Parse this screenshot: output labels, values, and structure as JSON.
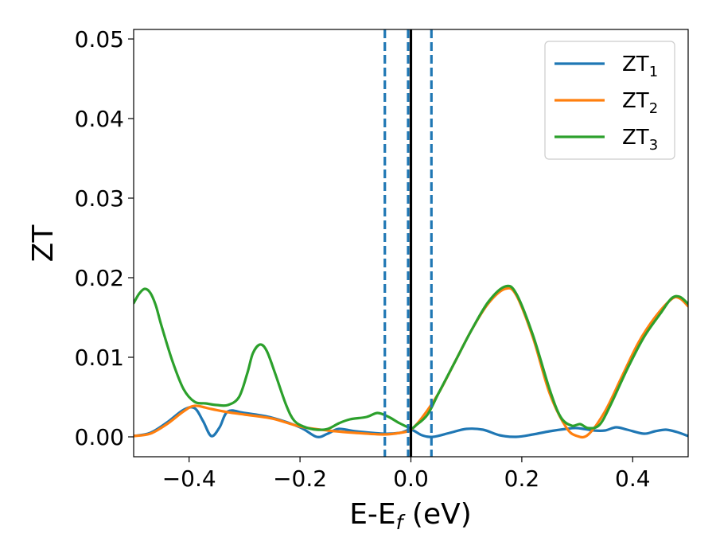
{
  "chart_data": {
    "type": "line",
    "title": "",
    "xlabel": {
      "main": "E-E",
      "subscript": "f",
      "suffix": " (eV)"
    },
    "ylabel": "ZT",
    "xlim": [
      -0.5,
      0.5
    ],
    "ylim": [
      -0.0025,
      0.0512
    ],
    "xticks": [
      -0.4,
      -0.2,
      0.0,
      0.2,
      0.4
    ],
    "xtick_labels": [
      "−0.4",
      "−0.2",
      "0.0",
      "0.2",
      "0.4"
    ],
    "yticks": [
      0.0,
      0.01,
      0.02,
      0.03,
      0.04,
      0.05
    ],
    "ytick_labels": [
      "0.00",
      "0.01",
      "0.02",
      "0.03",
      "0.04",
      "0.05"
    ],
    "grid": false,
    "legend_position": "top-right",
    "vertical_lines": [
      {
        "x": 0.0,
        "style": "solid",
        "color": "#000000"
      },
      {
        "x": -0.047,
        "style": "dashed",
        "color": "#1f77b4"
      },
      {
        "x": -0.005,
        "style": "dashed",
        "color": "#1f77b4"
      },
      {
        "x": 0.037,
        "style": "dashed",
        "color": "#1f77b4"
      }
    ],
    "series": [
      {
        "name": "ZT",
        "subscript": "1",
        "color": "#1f77b4",
        "points": [
          [
            -0.5,
            0.0001
          ],
          [
            -0.47,
            0.0005
          ],
          [
            -0.44,
            0.0018
          ],
          [
            -0.41,
            0.0034
          ],
          [
            -0.39,
            0.0036
          ],
          [
            -0.375,
            0.002
          ],
          [
            -0.36,
            0.0001
          ],
          [
            -0.345,
            0.0012
          ],
          [
            -0.33,
            0.0032
          ],
          [
            -0.3,
            0.003
          ],
          [
            -0.25,
            0.0024
          ],
          [
            -0.2,
            0.0012
          ],
          [
            -0.17,
            0.0
          ],
          [
            -0.15,
            0.0004
          ],
          [
            -0.13,
            0.001
          ],
          [
            -0.1,
            0.0007
          ],
          [
            -0.05,
            0.0004
          ],
          [
            -0.02,
            0.0005
          ],
          [
            0.0,
            0.0009
          ],
          [
            0.02,
            0.0002
          ],
          [
            0.04,
            0.0
          ],
          [
            0.07,
            0.0005
          ],
          [
            0.1,
            0.001
          ],
          [
            0.13,
            0.0009
          ],
          [
            0.16,
            0.0002
          ],
          [
            0.19,
            0.0
          ],
          [
            0.22,
            0.0003
          ],
          [
            0.25,
            0.0007
          ],
          [
            0.28,
            0.001
          ],
          [
            0.3,
            0.0011
          ],
          [
            0.33,
            0.0008
          ],
          [
            0.35,
            0.0008
          ],
          [
            0.37,
            0.0012
          ],
          [
            0.39,
            0.0009
          ],
          [
            0.42,
            0.0004
          ],
          [
            0.44,
            0.0007
          ],
          [
            0.46,
            0.0009
          ],
          [
            0.48,
            0.0006
          ],
          [
            0.5,
            0.0001
          ]
        ]
      },
      {
        "name": "ZT",
        "subscript": "2",
        "color": "#ff7f0e",
        "points": [
          [
            -0.5,
            0.0001
          ],
          [
            -0.47,
            0.0004
          ],
          [
            -0.44,
            0.0016
          ],
          [
            -0.41,
            0.0032
          ],
          [
            -0.39,
            0.0039
          ],
          [
            -0.36,
            0.0035
          ],
          [
            -0.33,
            0.0031
          ],
          [
            -0.3,
            0.0028
          ],
          [
            -0.25,
            0.0023
          ],
          [
            -0.2,
            0.0013
          ],
          [
            -0.15,
            0.0008
          ],
          [
            -0.1,
            0.0005
          ],
          [
            -0.05,
            0.0003
          ],
          [
            -0.02,
            0.0005
          ],
          [
            0.0,
            0.0009
          ],
          [
            0.02,
            0.0024
          ],
          [
            0.05,
            0.0055
          ],
          [
            0.08,
            0.0095
          ],
          [
            0.11,
            0.0135
          ],
          [
            0.14,
            0.0168
          ],
          [
            0.17,
            0.0186
          ],
          [
            0.19,
            0.0178
          ],
          [
            0.22,
            0.0125
          ],
          [
            0.25,
            0.0055
          ],
          [
            0.28,
            0.0012
          ],
          [
            0.3,
            0.0001
          ],
          [
            0.32,
            0.0003
          ],
          [
            0.35,
            0.0032
          ],
          [
            0.38,
            0.0075
          ],
          [
            0.41,
            0.0118
          ],
          [
            0.44,
            0.015
          ],
          [
            0.47,
            0.0173
          ],
          [
            0.485,
            0.0174
          ],
          [
            0.5,
            0.0164
          ]
        ]
      },
      {
        "name": "ZT",
        "subscript": "3",
        "color": "#2ca02c",
        "points": [
          [
            -0.5,
            0.0168
          ],
          [
            -0.49,
            0.018
          ],
          [
            -0.48,
            0.0186
          ],
          [
            -0.47,
            0.0181
          ],
          [
            -0.46,
            0.0165
          ],
          [
            -0.45,
            0.014
          ],
          [
            -0.43,
            0.0095
          ],
          [
            -0.41,
            0.006
          ],
          [
            -0.39,
            0.0044
          ],
          [
            -0.37,
            0.0042
          ],
          [
            -0.35,
            0.004
          ],
          [
            -0.33,
            0.004
          ],
          [
            -0.31,
            0.005
          ],
          [
            -0.295,
            0.008
          ],
          [
            -0.285,
            0.0105
          ],
          [
            -0.272,
            0.0116
          ],
          [
            -0.26,
            0.0108
          ],
          [
            -0.245,
            0.008
          ],
          [
            -0.225,
            0.004
          ],
          [
            -0.21,
            0.002
          ],
          [
            -0.19,
            0.0012
          ],
          [
            -0.17,
            0.0009
          ],
          [
            -0.15,
            0.001
          ],
          [
            -0.13,
            0.0017
          ],
          [
            -0.11,
            0.0022
          ],
          [
            -0.08,
            0.0025
          ],
          [
            -0.06,
            0.003
          ],
          [
            -0.04,
            0.0025
          ],
          [
            -0.02,
            0.0017
          ],
          [
            0.0,
            0.0011
          ],
          [
            0.01,
            0.0015
          ],
          [
            0.03,
            0.0028
          ],
          [
            0.05,
            0.0055
          ],
          [
            0.08,
            0.0095
          ],
          [
            0.11,
            0.0135
          ],
          [
            0.14,
            0.017
          ],
          [
            0.17,
            0.0189
          ],
          [
            0.19,
            0.018
          ],
          [
            0.22,
            0.0128
          ],
          [
            0.25,
            0.006
          ],
          [
            0.27,
            0.0025
          ],
          [
            0.29,
            0.0014
          ],
          [
            0.305,
            0.0016
          ],
          [
            0.32,
            0.0011
          ],
          [
            0.34,
            0.0015
          ],
          [
            0.36,
            0.004
          ],
          [
            0.39,
            0.0085
          ],
          [
            0.42,
            0.0125
          ],
          [
            0.45,
            0.0155
          ],
          [
            0.47,
            0.0174
          ],
          [
            0.485,
            0.0176
          ],
          [
            0.5,
            0.0167
          ]
        ]
      }
    ]
  }
}
